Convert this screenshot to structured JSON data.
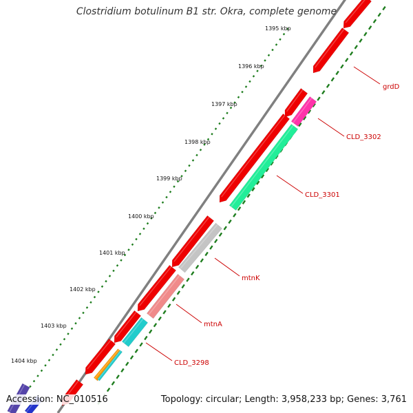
{
  "title": "Clostridium botulinum B1 str. Okra, complete genome",
  "accession": {
    "label": "Accession:",
    "value": "NC_010516"
  },
  "summary": {
    "topology": "circular",
    "length": "3,958,233 bp",
    "genes": "3,761",
    "text": "Topology: circular; Length: 3,958,233 bp; Genes: 3,761"
  },
  "colors": {
    "backbone": "#808080",
    "tick_dots": "#1e7d1e",
    "forward_gene": "#ee0000",
    "label": "#cc0000",
    "CLD_3302": "#ff33aa",
    "CLD_3301": "#22ee99",
    "mtnK": "#c4c4c4",
    "mtnA": "#f08a8a",
    "CLD_3298": "#22cccc",
    "orange_gene": "#ff9900",
    "blue_gene": "#2233cc"
  },
  "tick_labels": [
    "1395 kbp",
    "1396 kbp",
    "1397 kbp",
    "1398 kbp",
    "1399 kbp",
    "1400 kbp",
    "1401 kbp",
    "1402 kbp",
    "1403 kbp",
    "1404 kbp"
  ],
  "gene_labels": [
    "grdD",
    "CLD_3302",
    "CLD_3301",
    "mtnK",
    "mtnA",
    "CLD_3298"
  ]
}
